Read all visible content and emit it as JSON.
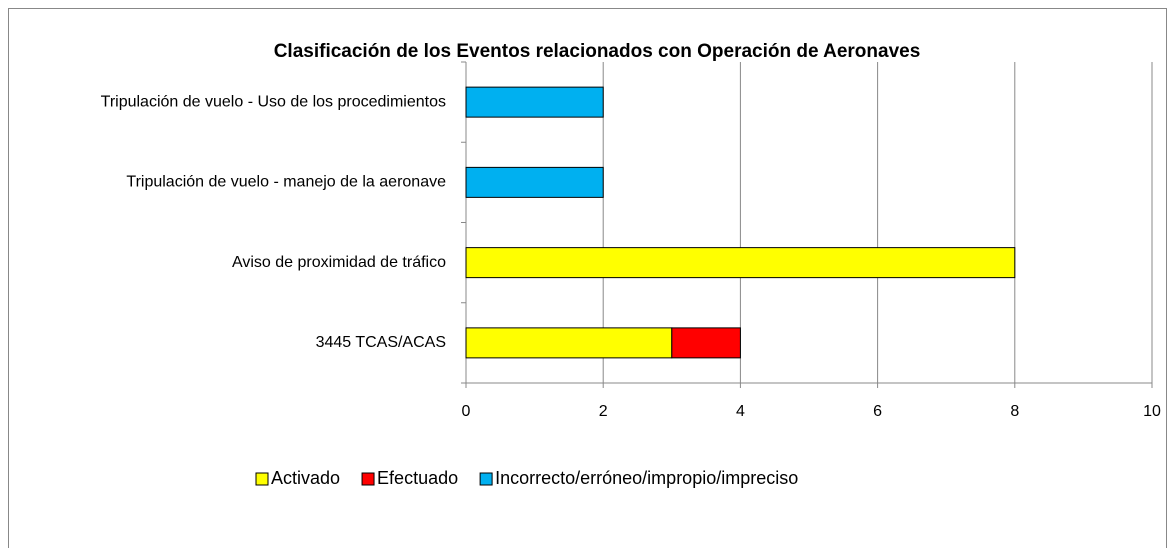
{
  "chart_data": {
    "type": "bar",
    "orientation": "horizontal",
    "stacked": true,
    "title": "Clasificación de los Eventos relacionados con Operación de Aeronaves",
    "categories": [
      "3445 TCAS/ACAS",
      "Aviso de proximidad de tráfico",
      "Tripulación de vuelo - manejo de la aeronave",
      "Tripulación de vuelo - Uso de los procedimientos"
    ],
    "series": [
      {
        "name": "Activado",
        "color": "#ffff00",
        "values": [
          3,
          8,
          0,
          0
        ]
      },
      {
        "name": "Efectuado",
        "color": "#ff0000",
        "values": [
          1,
          0,
          0,
          0
        ]
      },
      {
        "name": "Incorrecto/erróneo/impropio/impreciso",
        "color": "#00b0f0",
        "values": [
          0,
          0,
          2,
          2
        ]
      }
    ],
    "xlim": [
      0,
      10
    ],
    "xticks": [
      0,
      2,
      4,
      6,
      8,
      10
    ],
    "grid": true,
    "legend": "bottom"
  }
}
